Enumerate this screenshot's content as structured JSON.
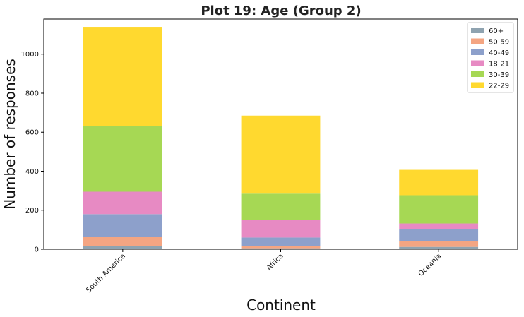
{
  "chart_data": {
    "type": "bar",
    "stacked": true,
    "title": "Plot 19: Age (Group 2)",
    "xlabel": "Continent",
    "ylabel": "Number of responses",
    "categories": [
      "South America",
      "Africa",
      "Oceania"
    ],
    "ylim": [
      0,
      1180
    ],
    "yticks": [
      0,
      200,
      400,
      600,
      800,
      1000
    ],
    "legend_position": "top-right",
    "legend_order": [
      "60+",
      "50-59",
      "40-49",
      "18-21",
      "30-39",
      "22-29"
    ],
    "series": [
      {
        "name": "60+",
        "values": [
          15,
          5,
          12
        ],
        "color": "#8fa3b0"
      },
      {
        "name": "50-59",
        "values": [
          50,
          10,
          30
        ],
        "color": "#f4a582"
      },
      {
        "name": "40-49",
        "values": [
          115,
          45,
          60
        ],
        "color": "#8da0cb"
      },
      {
        "name": "18-21",
        "values": [
          115,
          90,
          30
        ],
        "color": "#e78ac3"
      },
      {
        "name": "30-39",
        "values": [
          335,
          135,
          145
        ],
        "color": "#a6d854"
      },
      {
        "name": "22-29",
        "values": [
          510,
          400,
          130
        ],
        "color": "#ffd92f"
      }
    ]
  }
}
